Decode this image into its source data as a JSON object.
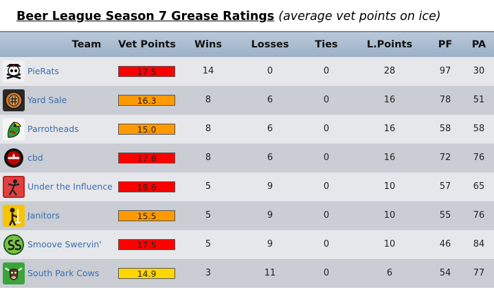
{
  "title": {
    "main": "Beer League Season 7 Grease Ratings",
    "sub": "(average vet points on ice)"
  },
  "columns": {
    "team": "Team",
    "vet_points": "Vet Points",
    "wins": "Wins",
    "losses": "Losses",
    "ties": "Ties",
    "league_points": "L.Points",
    "pf": "PF",
    "pa": "PA"
  },
  "colors": {
    "red": "#ff0000",
    "orange": "#ff9900",
    "yellow": "#ffd700",
    "link": "#3a6fb0"
  },
  "rows": [
    {
      "team": "PieRats",
      "logo_icon": "pirate-skull-icon",
      "vet_points": "17.5",
      "vp_color": "#ff0000",
      "wins": "14",
      "losses": "0",
      "ties": "0",
      "league_points": "28",
      "pf": "97",
      "pa": "30"
    },
    {
      "team": "Yard Sale",
      "logo_icon": "goalie-mask-icon",
      "vet_points": "16.3",
      "vp_color": "#ff9900",
      "wins": "8",
      "losses": "6",
      "ties": "0",
      "league_points": "16",
      "pf": "78",
      "pa": "51"
    },
    {
      "team": "Parrotheads",
      "logo_icon": "parrot-icon",
      "vet_points": "15.0",
      "vp_color": "#ff9900",
      "wins": "8",
      "losses": "6",
      "ties": "0",
      "league_points": "16",
      "pf": "58",
      "pa": "58"
    },
    {
      "team": "cbd",
      "logo_icon": "cbd-badge-icon",
      "vet_points": "17.8",
      "vp_color": "#ff0000",
      "wins": "8",
      "losses": "6",
      "ties": "0",
      "league_points": "16",
      "pf": "72",
      "pa": "76"
    },
    {
      "team": "Under the Influence",
      "logo_icon": "figure-icon",
      "vet_points": "18.6",
      "vp_color": "#ff0000",
      "wins": "5",
      "losses": "9",
      "ties": "0",
      "league_points": "10",
      "pf": "57",
      "pa": "65"
    },
    {
      "team": "Janitors",
      "logo_icon": "janitor-icon",
      "vet_points": "15.5",
      "vp_color": "#ff9900",
      "wins": "5",
      "losses": "9",
      "ties": "0",
      "league_points": "10",
      "pf": "55",
      "pa": "76"
    },
    {
      "team": "Smoove Swervin'",
      "logo_icon": "ss-logo-icon",
      "vet_points": "17.5",
      "vp_color": "#ff0000",
      "wins": "5",
      "losses": "9",
      "ties": "0",
      "league_points": "10",
      "pf": "46",
      "pa": "84"
    },
    {
      "team": "South Park Cows",
      "logo_icon": "cow-icon",
      "vet_points": "14.9",
      "vp_color": "#ffd700",
      "wins": "3",
      "losses": "11",
      "ties": "0",
      "league_points": "6",
      "pf": "54",
      "pa": "77"
    }
  ]
}
